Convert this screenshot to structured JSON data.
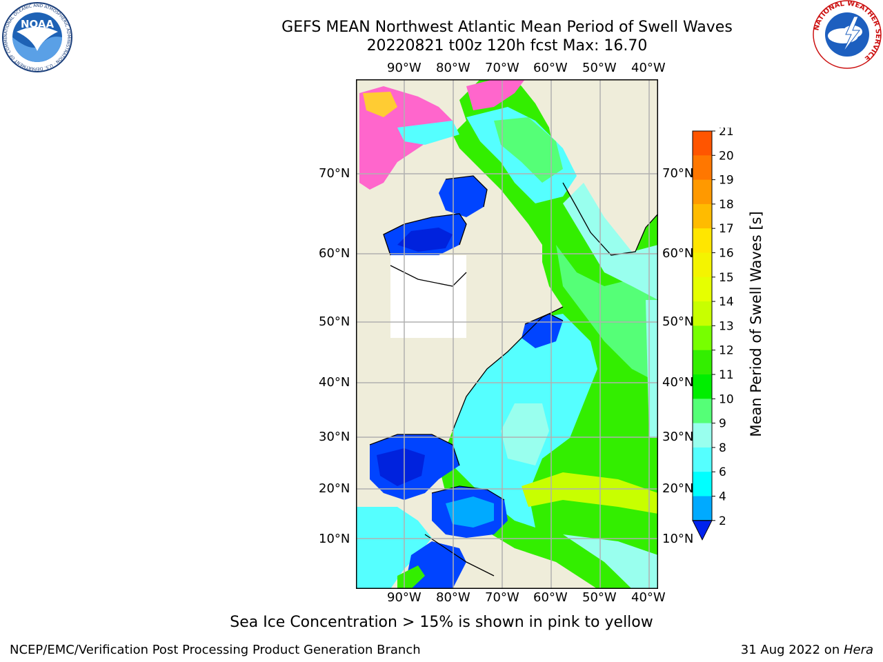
{
  "header": {
    "title_line1": "GEFS MEAN Northwest Atlantic Mean Period of Swell Waves",
    "title_line2": "20220821 t00z 120h fcst   Max: 16.70"
  },
  "logos": {
    "noaa_text": "NOAA",
    "noaa_ring": "NATIONAL OCEANIC AND ATMOSPHERIC ADMINISTRATION · U.S. DEPARTMENT OF COMMERCE",
    "nws_ring": "NATIONAL WEATHER SERVICE"
  },
  "map": {
    "lon_labels": [
      "90°W",
      "80°W",
      "70°W",
      "60°W",
      "50°W",
      "40°W"
    ],
    "lat_labels": [
      "70°N",
      "60°N",
      "50°N",
      "40°N",
      "30°N",
      "20°N",
      "10°N"
    ],
    "colors": {
      "land": "#efedda",
      "no_data": "#ffffff",
      "ice_pink": "#ff66cc",
      "ice_yellow": "#ffcc33",
      "grid": "#b0b0b0"
    }
  },
  "colorbar": {
    "label": "Mean Period of Swell Waves [s]",
    "ticks": [
      "21",
      "20",
      "19",
      "18",
      "17",
      "16",
      "15",
      "14",
      "13",
      "12",
      "11",
      "10",
      "9",
      "8",
      "6",
      "4",
      "2"
    ],
    "colors": [
      "#ff0000",
      "#ff3300",
      "#ff5500",
      "#ff7700",
      "#ff9900",
      "#ffbb00",
      "#ffe600",
      "#f4f400",
      "#e6ff00",
      "#c8ff00",
      "#77ff00",
      "#33ee00",
      "#00ee00",
      "#55ff77",
      "#99ffee",
      "#55ffff",
      "#00ffff",
      "#00aaff",
      "#0044ff"
    ]
  },
  "footer": {
    "ice_note": "Sea Ice Concentration > 15% is shown in pink to yellow",
    "branch": "NCEP/EMC/Verification Post Processing Product Generation Branch",
    "date": "31 Aug 2022 on ",
    "machine": "Hera"
  }
}
